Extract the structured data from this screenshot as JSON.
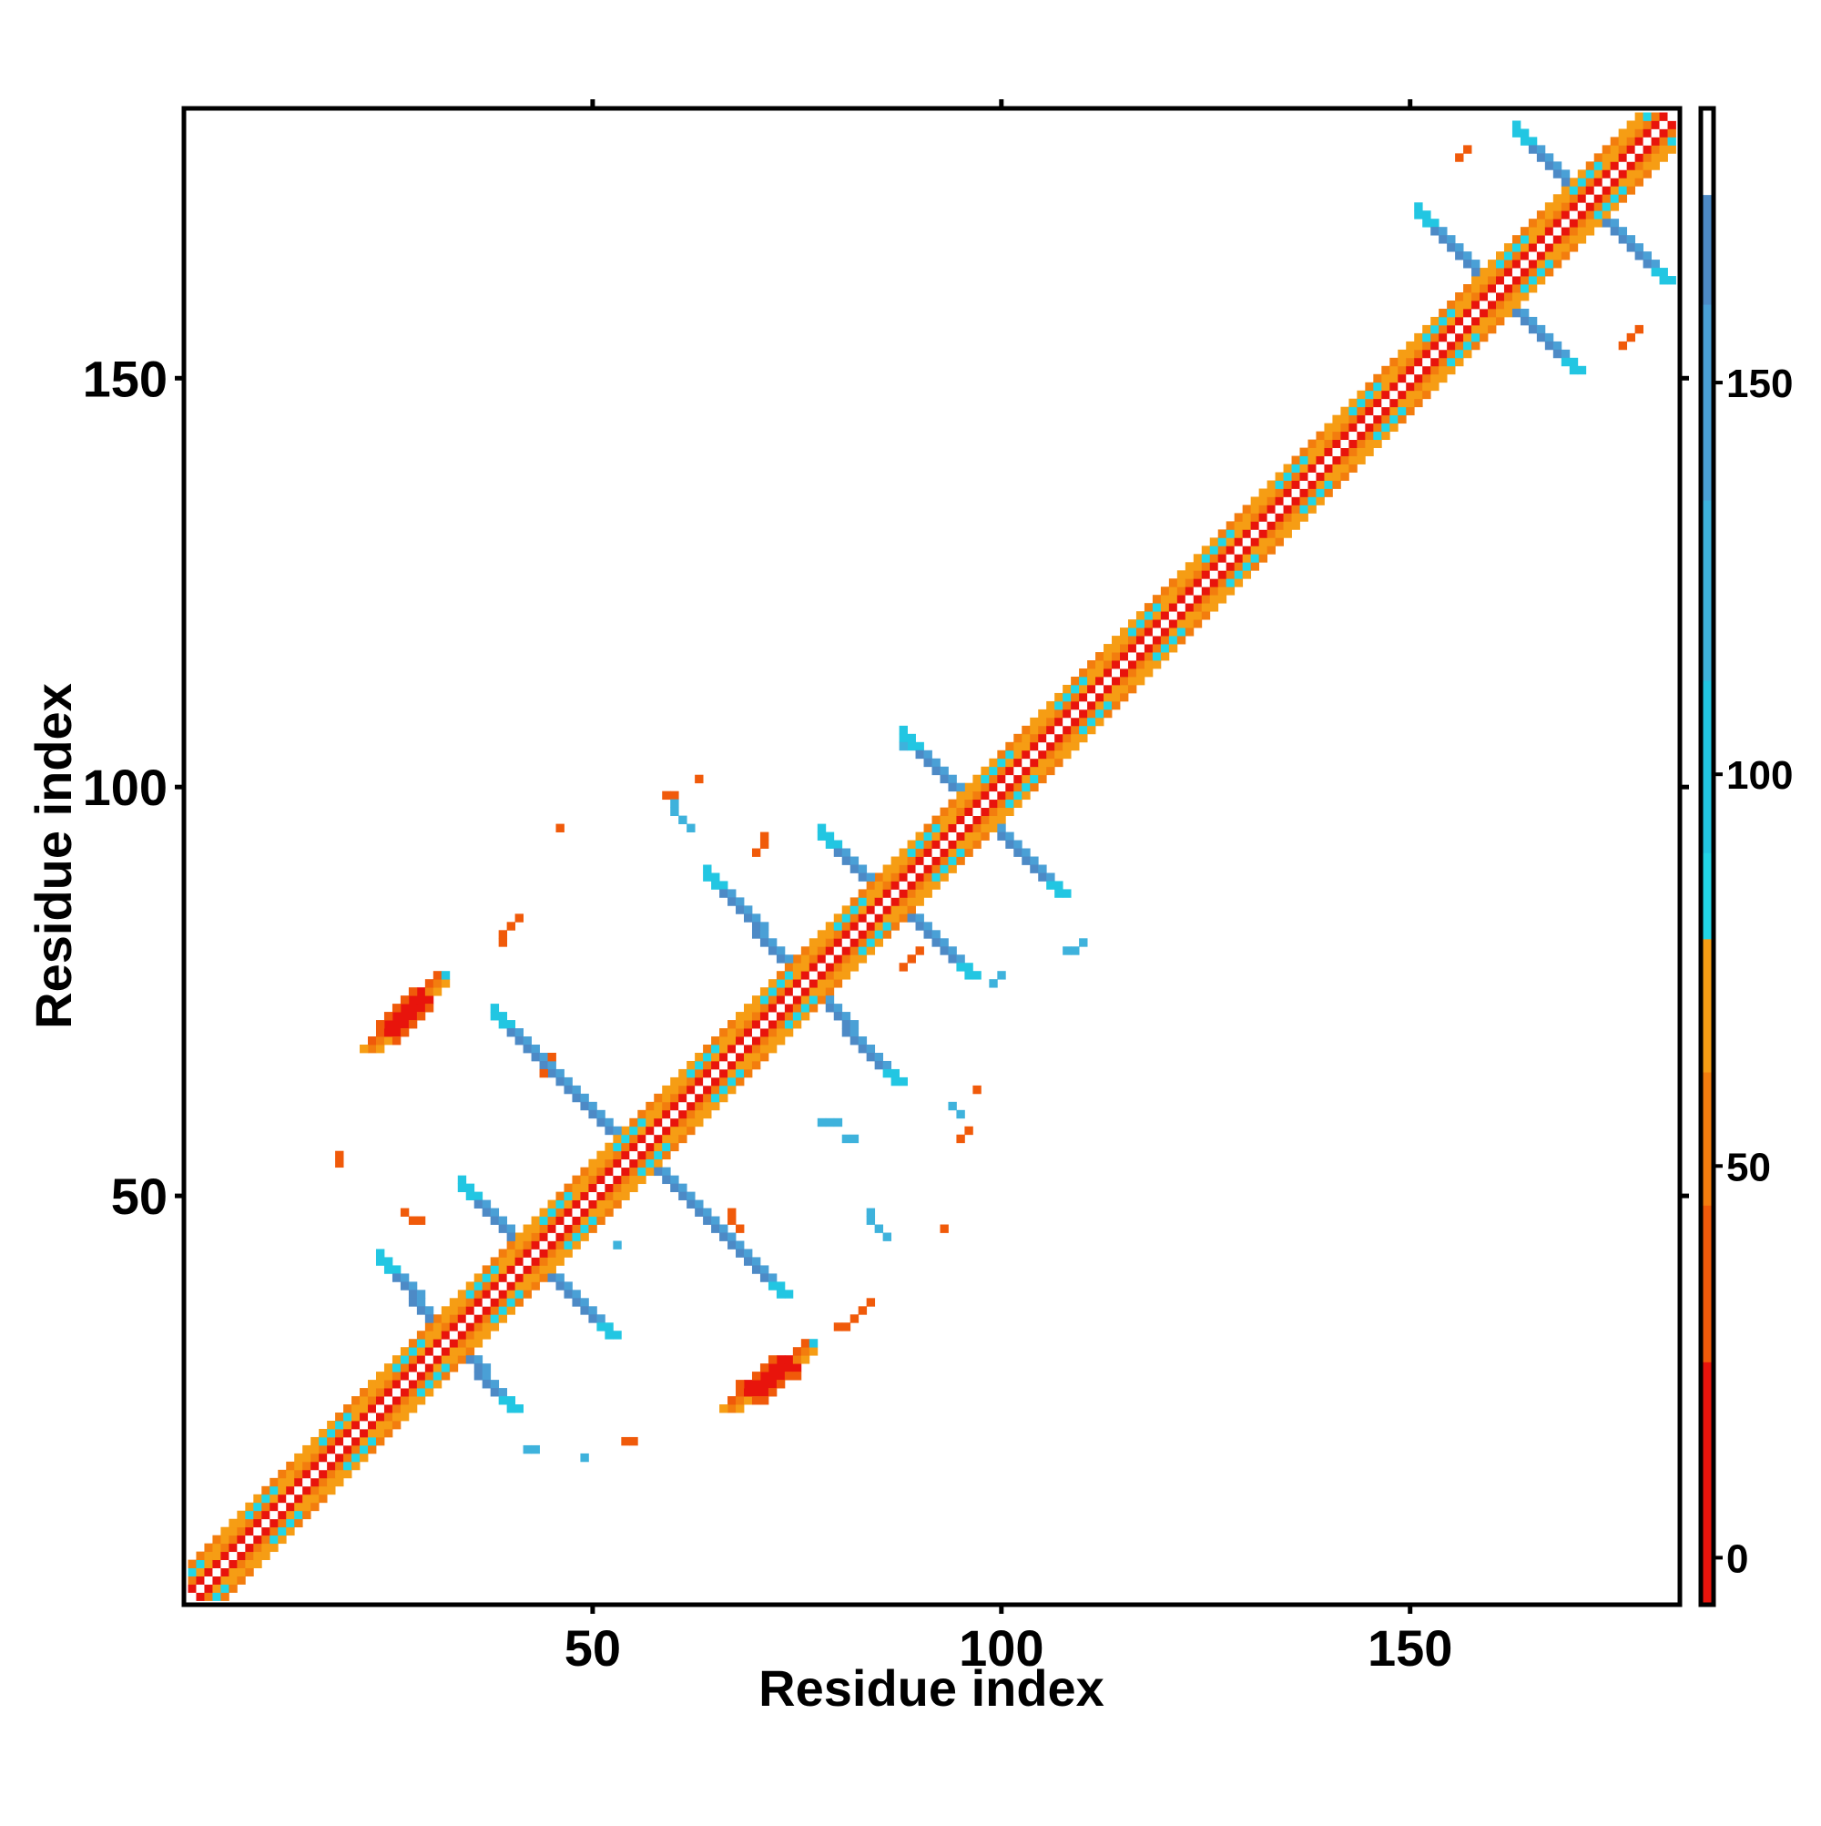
{
  "chart_data": {
    "type": "heatmap",
    "title": "",
    "xlabel": "Residue index",
    "ylabel": "Residue index",
    "xlim": [
      0,
      183
    ],
    "ylim": [
      0,
      183
    ],
    "x_ticks": [
      50,
      100,
      150
    ],
    "y_ticks": [
      50,
      100,
      150
    ],
    "grid": false,
    "legend": "colorbar right",
    "colorbar": {
      "range": [
        -6,
        185
      ],
      "ticks": [
        0,
        50,
        100,
        150
      ],
      "stops": [
        {
          "from": -6,
          "to": 25,
          "color": "#e8140c"
        },
        {
          "from": 25,
          "to": 45,
          "color": "#f05a0a"
        },
        {
          "from": 45,
          "to": 62,
          "color": "#f37d0e"
        },
        {
          "from": 62,
          "to": 79,
          "color": "#f69d14"
        },
        {
          "from": 79,
          "to": 90,
          "color": "#22d6e6"
        },
        {
          "from": 90,
          "to": 112,
          "color": "#22c6e2"
        },
        {
          "from": 112,
          "to": 135,
          "color": "#3eb2dc"
        },
        {
          "from": 135,
          "to": 160,
          "color": "#4aa0d6"
        },
        {
          "from": 160,
          "to": 174,
          "color": "#4d8ac6"
        },
        {
          "from": 174,
          "to": 185,
          "color": "#ffffff"
        }
      ]
    },
    "features": [
      {
        "kind": "diagonal",
        "from": 1,
        "to": 182
      },
      {
        "kind": "anti_segment",
        "from": [
          24,
          42
        ],
        "to": [
          40,
          24
        ],
        "value": 150
      },
      {
        "kind": "anti_segment",
        "from": [
          34,
          51
        ],
        "to": [
          52,
          33
        ],
        "value": 150
      },
      {
        "kind": "anti_segment",
        "from": [
          38,
          72
        ],
        "to": [
          73,
          38
        ],
        "value": 150
      },
      {
        "kind": "anti_segment",
        "from": [
          64,
          89
        ],
        "to": [
          87,
          64
        ],
        "value": 150
      },
      {
        "kind": "anti_segment",
        "from": [
          78,
          94
        ],
        "to": [
          96,
          77
        ],
        "value": 150
      },
      {
        "kind": "anti_segment",
        "from": [
          88,
          106
        ],
        "to": [
          107,
          87
        ],
        "value": 150
      },
      {
        "kind": "anti_segment",
        "from": [
          151,
          170
        ],
        "to": [
          170,
          151
        ],
        "value": 150
      },
      {
        "kind": "anti_segment",
        "from": [
          163,
          180
        ],
        "to": [
          181,
          162
        ],
        "value": 150
      },
      {
        "kind": "blob",
        "from": [
          23,
          68
        ],
        "to": [
          31,
          76
        ],
        "value": 10
      },
      {
        "kind": "blob",
        "from": [
          67,
          24
        ],
        "to": [
          76,
          31
        ],
        "value": 10
      },
      {
        "kind": "dots",
        "value": 40,
        "points": [
          [
            19,
            54
          ],
          [
            19,
            55
          ],
          [
            27,
            48
          ],
          [
            28,
            47
          ],
          [
            29,
            47
          ],
          [
            39,
            81
          ],
          [
            39,
            82
          ],
          [
            40,
            83
          ],
          [
            41,
            84
          ],
          [
            44,
            65
          ],
          [
            44,
            66
          ],
          [
            45,
            67
          ],
          [
            46,
            95
          ],
          [
            54,
            20
          ],
          [
            55,
            20
          ],
          [
            59,
            99
          ],
          [
            60,
            99
          ],
          [
            63,
            101
          ],
          [
            67,
            48
          ],
          [
            67,
            47
          ],
          [
            68,
            46
          ],
          [
            70,
            92
          ],
          [
            71,
            93
          ],
          [
            71,
            94
          ],
          [
            80,
            34
          ],
          [
            81,
            34
          ],
          [
            82,
            35
          ],
          [
            83,
            36
          ],
          [
            84,
            37
          ],
          [
            88,
            78
          ],
          [
            89,
            79
          ],
          [
            90,
            80
          ],
          [
            93,
            46
          ],
          [
            95,
            57
          ],
          [
            96,
            58
          ],
          [
            97,
            63
          ],
          [
            156,
            177
          ],
          [
            157,
            178
          ],
          [
            176,
            154
          ],
          [
            177,
            155
          ],
          [
            178,
            156
          ]
        ]
      },
      {
        "kind": "dots",
        "value": 120,
        "points": [
          [
            30,
            75
          ],
          [
            31,
            76
          ],
          [
            42,
            19
          ],
          [
            43,
            19
          ],
          [
            49,
            18
          ],
          [
            52,
            33
          ],
          [
            53,
            44
          ],
          [
            60,
            98
          ],
          [
            60,
            97
          ],
          [
            61,
            96
          ],
          [
            62,
            95
          ],
          [
            78,
            59
          ],
          [
            79,
            59
          ],
          [
            80,
            59
          ],
          [
            81,
            57
          ],
          [
            82,
            57
          ],
          [
            84,
            48
          ],
          [
            84,
            47
          ],
          [
            85,
            46
          ],
          [
            86,
            45
          ],
          [
            88,
            105
          ],
          [
            89,
            105
          ],
          [
            94,
            61
          ],
          [
            95,
            60
          ],
          [
            99,
            76
          ],
          [
            100,
            77
          ],
          [
            108,
            80
          ],
          [
            109,
            80
          ],
          [
            110,
            81
          ]
        ]
      }
    ]
  }
}
